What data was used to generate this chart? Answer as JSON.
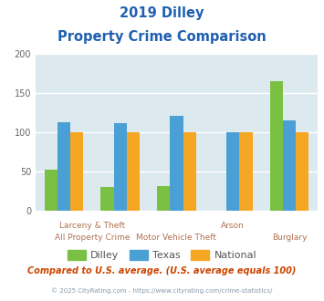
{
  "title_line1": "2019 Dilley",
  "title_line2": "Property Crime Comparison",
  "dilley": [
    52,
    30,
    32,
    0,
    165
  ],
  "texas": [
    113,
    112,
    121,
    100,
    115
  ],
  "national": [
    100,
    100,
    100,
    100,
    100
  ],
  "dilley_color": "#7ac143",
  "texas_color": "#4a9fd4",
  "national_color": "#f5a623",
  "bg_color": "#dce9ef",
  "grid_color": "#ffffff",
  "ylim": [
    0,
    200
  ],
  "yticks": [
    0,
    50,
    100,
    150,
    200
  ],
  "bar_width": 0.23,
  "title_color": "#2060b0",
  "label_color": "#b07050",
  "footer_color": "#8899aa",
  "note_color": "#cc4400",
  "legend_label_color": "#555555",
  "subtitle_note": "Compared to U.S. average. (U.S. average equals 100)",
  "footer": "© 2025 CityRating.com - https://www.cityrating.com/crime-statistics/",
  "top_labels": [
    "",
    "Larceny & Theft",
    "",
    "Arson",
    ""
  ],
  "bottom_labels": [
    "All Property Crime",
    "Motor Vehicle Theft",
    "",
    "",
    "Burglary"
  ],
  "legend_labels": [
    "Dilley",
    "Texas",
    "National"
  ]
}
